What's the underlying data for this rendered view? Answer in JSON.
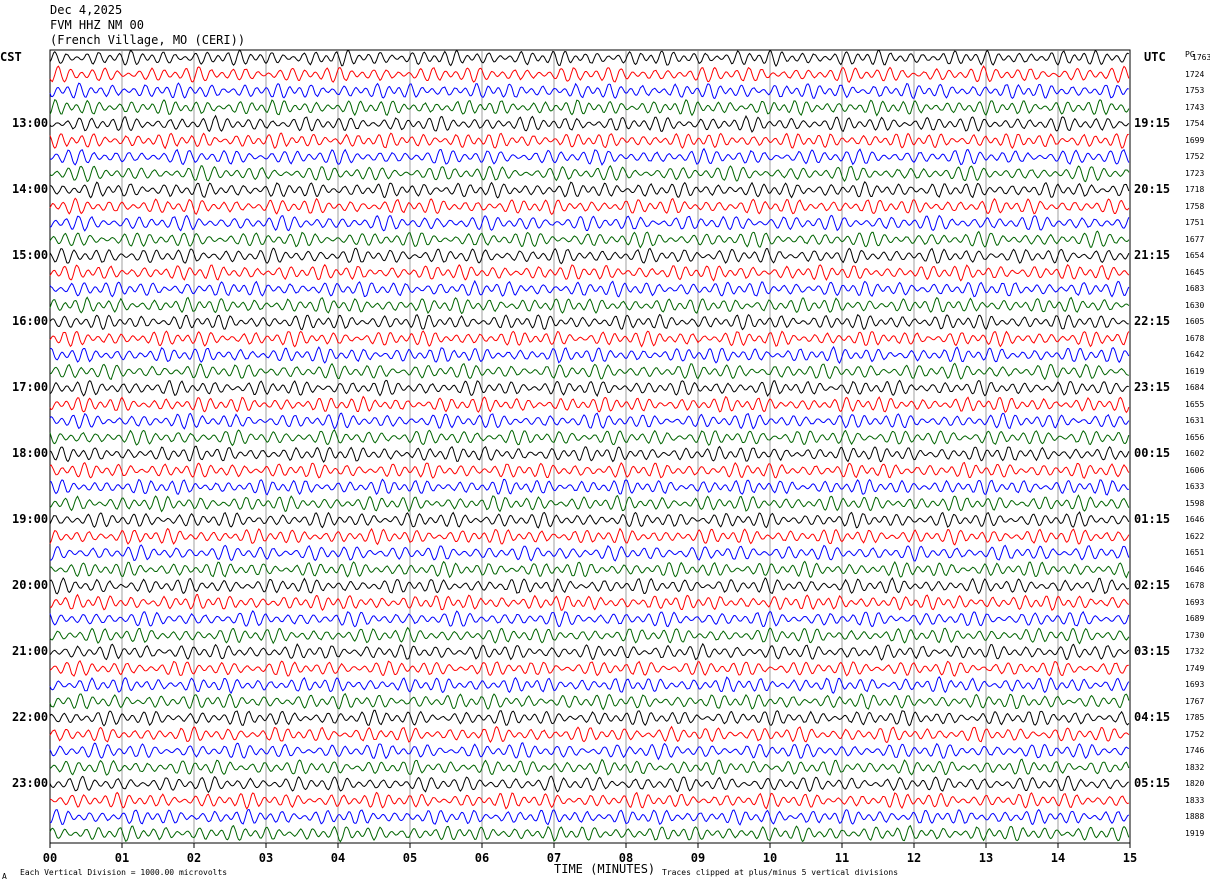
{
  "header": {
    "date": "Dec 4,2025",
    "station": "FVM HHZ NM 00",
    "location": "(French Village, MO (CERI))"
  },
  "left_axis_label": "CST",
  "right_axis_label": "UTC",
  "rms_label": "PG",
  "footer": {
    "scale_note": "Each Vertical Division = 1000.00 microvolts",
    "clip_note": "Traces clipped at plus/minus 5 vertical divisions",
    "corner_mark": "A"
  },
  "chart_data": {
    "type": "line",
    "title": "",
    "xlabel": "TIME (MINUTES)",
    "ylabel": "",
    "xlim": [
      0,
      15
    ],
    "x_tick_labels": [
      "00",
      "01",
      "02",
      "03",
      "04",
      "05",
      "06",
      "07",
      "08",
      "09",
      "10",
      "11",
      "12",
      "13",
      "14",
      "15"
    ],
    "trace_count": 48,
    "trace_colors": [
      "#000000",
      "#ff0000",
      "#0000ff",
      "#006400"
    ],
    "grid": true,
    "left_hour_labels": [
      "13:00",
      "14:00",
      "15:00",
      "16:00",
      "17:00",
      "18:00",
      "19:00",
      "20:00",
      "21:00",
      "22:00",
      "23:00"
    ],
    "right_hour_labels": [
      "19:15",
      "20:15",
      "21:15",
      "22:15",
      "23:15",
      "00:15",
      "01:15",
      "02:15",
      "03:15",
      "04:15",
      "05:15"
    ],
    "first_hour_label_trace": 4,
    "traces_per_hour": 4,
    "rms_values": [
      "1763",
      "1724",
      "1753",
      "1743",
      "1754",
      "1699",
      "1752",
      "1723",
      "1718",
      "1758",
      "1751",
      "1677",
      "1654",
      "1645",
      "1683",
      "1630",
      "1605",
      "1678",
      "1642",
      "1619",
      "1684",
      "1655",
      "1631",
      "1656",
      "1602",
      "1606",
      "1633",
      "1598",
      "1646",
      "1622",
      "1651",
      "1646",
      "1678",
      "1693",
      "1689",
      "1730",
      "1732",
      "1749",
      "1693",
      "1767",
      "1785",
      "1752",
      "1746",
      "1832",
      "1820",
      "1833",
      "1888",
      "1919"
    ]
  }
}
